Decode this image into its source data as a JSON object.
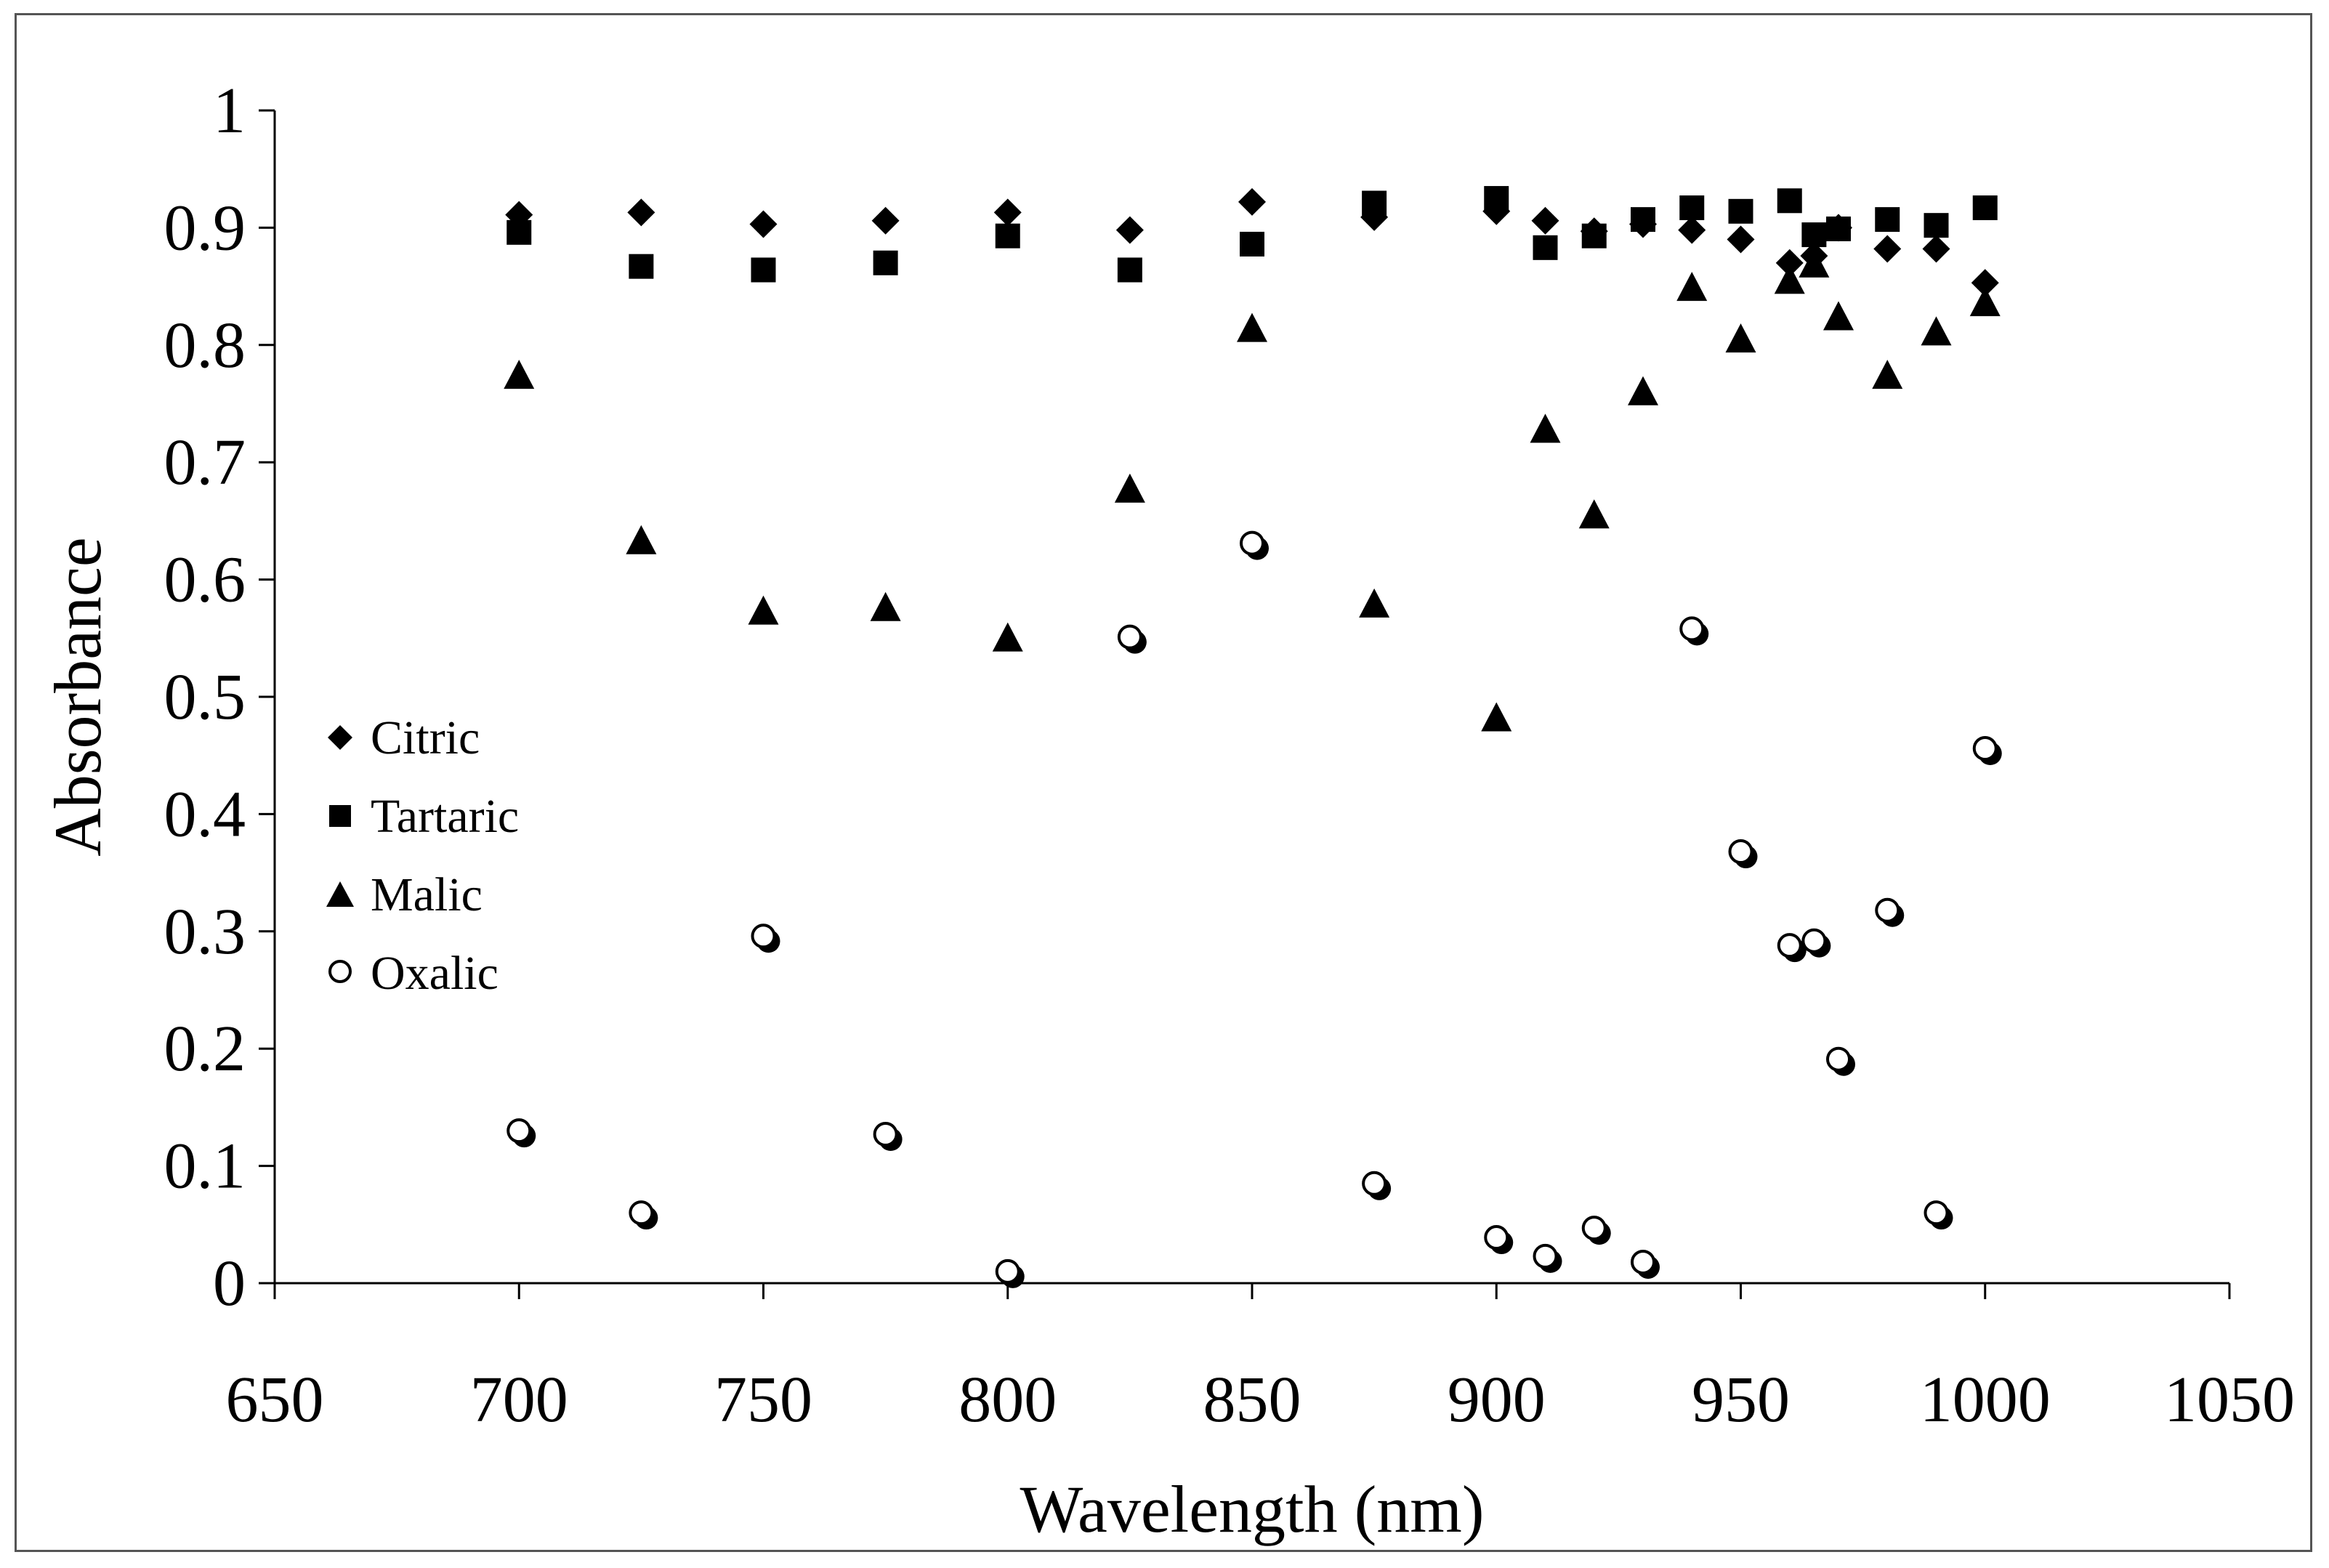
{
  "chart_data": {
    "type": "scatter",
    "title": "",
    "xlabel": "Wavelength (nm)",
    "ylabel": "Absorbance",
    "xlim": [
      650,
      1050
    ],
    "ylim": [
      0,
      1
    ],
    "xticks": [
      "650",
      "700",
      "750",
      "800",
      "850",
      "900",
      "950",
      "1000",
      "1050"
    ],
    "yticks": [
      "0",
      "0.1",
      "0.2",
      "0.3",
      "0.4",
      "0.5",
      "0.6",
      "0.7",
      "0.8",
      "0.9",
      "1"
    ],
    "grid": false,
    "legend_position": "left-middle",
    "series": [
      {
        "name": "Citric",
        "marker": "diamond",
        "color": "#000000",
        "x": [
          700,
          725,
          750,
          775,
          800,
          825,
          850,
          875,
          900,
          910,
          920,
          930,
          940,
          950,
          960,
          965,
          970,
          980,
          990,
          1000
        ],
        "y": [
          0.911,
          0.913,
          0.903,
          0.906,
          0.913,
          0.898,
          0.922,
          0.909,
          0.914,
          0.906,
          0.897,
          0.903,
          0.898,
          0.89,
          0.87,
          0.876,
          0.9,
          0.882,
          0.882,
          0.853
        ]
      },
      {
        "name": "Tartaric",
        "marker": "square",
        "color": "#000000",
        "x": [
          700,
          725,
          750,
          775,
          800,
          825,
          850,
          875,
          900,
          910,
          920,
          930,
          940,
          950,
          960,
          965,
          970,
          980,
          990,
          1000
        ],
        "y": [
          0.896,
          0.867,
          0.864,
          0.87,
          0.893,
          0.864,
          0.886,
          0.921,
          0.925,
          0.883,
          0.893,
          0.907,
          0.917,
          0.914,
          0.923,
          0.894,
          0.899,
          0.907,
          0.902,
          0.917
        ]
      },
      {
        "name": "Malic",
        "marker": "triangle",
        "color": "#000000",
        "x": [
          700,
          725,
          750,
          775,
          800,
          825,
          850,
          875,
          900,
          910,
          920,
          930,
          940,
          950,
          960,
          965,
          970,
          980,
          990,
          1000
        ],
        "y": [
          0.775,
          0.634,
          0.574,
          0.577,
          0.551,
          0.678,
          0.815,
          0.58,
          0.483,
          0.729,
          0.656,
          0.761,
          0.85,
          0.806,
          0.856,
          0.87,
          0.825,
          0.775,
          0.812,
          0.837
        ]
      },
      {
        "name": "Oxalic",
        "marker": "circle-open",
        "color": "#000000",
        "x": [
          700,
          725,
          750,
          775,
          800,
          825,
          850,
          875,
          900,
          910,
          920,
          930,
          940,
          950,
          960,
          965,
          970,
          980,
          990,
          1000
        ],
        "y": [
          0.13,
          0.06,
          0.296,
          0.127,
          0.01,
          0.551,
          0.631,
          0.085,
          0.039,
          0.023,
          0.047,
          0.018,
          0.558,
          0.368,
          0.288,
          0.292,
          0.191,
          0.318,
          0.06,
          0.456
        ]
      }
    ]
  }
}
